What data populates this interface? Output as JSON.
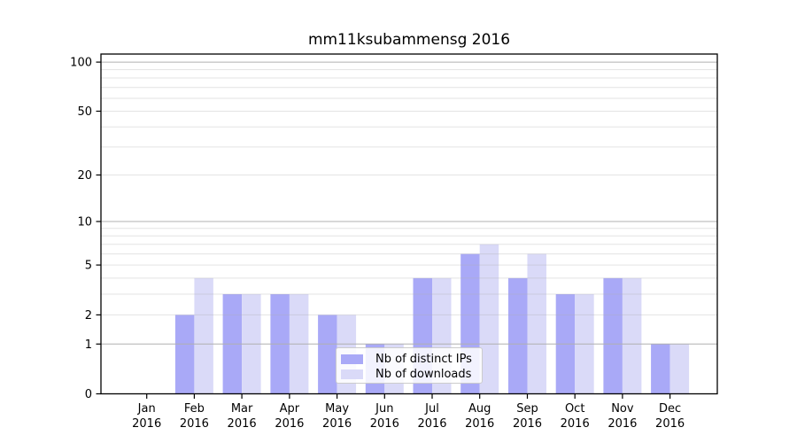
{
  "title": "mm11ksubammensg 2016",
  "chart_data": {
    "type": "bar",
    "title": "mm11ksubammensg 2016",
    "xlabel": "",
    "ylabel": "",
    "categories": [
      "Jan 2016",
      "Feb 2016",
      "Mar 2016",
      "Apr 2016",
      "May 2016",
      "Jun 2016",
      "Jul 2016",
      "Aug 2016",
      "Sep 2016",
      "Oct 2016",
      "Nov 2016",
      "Dec 2016"
    ],
    "months": [
      "Jan",
      "Feb",
      "Mar",
      "Apr",
      "May",
      "Jun",
      "Jul",
      "Aug",
      "Sep",
      "Oct",
      "Nov",
      "Dec"
    ],
    "year": "2016",
    "series": [
      {
        "name": "Nb of distinct IPs",
        "color": "#a9a9f7",
        "values": [
          0,
          2,
          3,
          3,
          2,
          1,
          4,
          6,
          4,
          3,
          4,
          1
        ]
      },
      {
        "name": "Nb of downloads",
        "color": "#dadaf8",
        "values": [
          0,
          4,
          3,
          3,
          2,
          1,
          4,
          7,
          6,
          3,
          4,
          1
        ]
      }
    ],
    "y_axis": {
      "scale": "log10(1+x)",
      "tick_values": [
        0,
        1,
        2,
        5,
        10,
        20,
        50,
        100
      ],
      "tick_labels": [
        "0",
        "1",
        "2",
        "5",
        "10",
        "20",
        "50",
        "100"
      ],
      "min": 0,
      "max_visible": 112
    },
    "gridlines": {
      "major_values": [
        1,
        10,
        100
      ],
      "minor_values": [
        2,
        3,
        4,
        5,
        6,
        7,
        8,
        9,
        20,
        30,
        40,
        50,
        60,
        70,
        80,
        90
      ],
      "major_color": "#b0b0b0",
      "grid_on": true
    },
    "legend": {
      "position": "lower-center-inside",
      "entries": [
        "Nb of distinct IPs",
        "Nb of downloads"
      ]
    }
  }
}
